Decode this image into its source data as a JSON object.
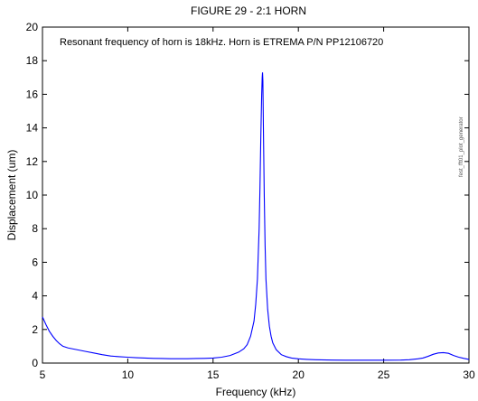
{
  "chart_data": {
    "type": "line",
    "title": "FIGURE 29 - 2:1 HORN",
    "xlabel": "Frequency (kHz)",
    "ylabel": "Displacement (um)",
    "xlim": [
      5,
      30
    ],
    "ylim": [
      0,
      20
    ],
    "xticks": [
      5,
      10,
      15,
      20,
      25,
      30
    ],
    "yticks": [
      0,
      2,
      4,
      6,
      8,
      10,
      12,
      14,
      16,
      18,
      20
    ],
    "grid": false,
    "legend": "none",
    "annotation": "Resonant frequency of horn is 18kHz.  Horn is ETREMA P/N PP12106720",
    "side_note": "fest_fft01_plot_generator",
    "line_color": "#0000ff",
    "series": [
      {
        "x": [
          5.0,
          5.2,
          5.4,
          5.6,
          5.8,
          6.0,
          6.2,
          6.5,
          7.0,
          7.5,
          8.0,
          8.5,
          9.0,
          9.5,
          10.0,
          10.5,
          11.0,
          11.5,
          12.0,
          12.5,
          13.0,
          13.5,
          14.0,
          14.5,
          15.0,
          15.5,
          16.0,
          16.5,
          16.8,
          17.0,
          17.2,
          17.4,
          17.5,
          17.6,
          17.7,
          17.75,
          17.8,
          17.85,
          17.88,
          17.9,
          17.92,
          17.95,
          18.0,
          18.05,
          18.1,
          18.2,
          18.3,
          18.4,
          18.5,
          18.7,
          19.0,
          19.3,
          19.6,
          20.0,
          20.5,
          21.0,
          22.0,
          23.0,
          24.0,
          25.0,
          26.0,
          26.5,
          27.0,
          27.3,
          27.6,
          27.9,
          28.2,
          28.5,
          28.8,
          29.1,
          29.4,
          29.7,
          30.0
        ],
        "y": [
          2.75,
          2.3,
          1.9,
          1.6,
          1.35,
          1.15,
          1.0,
          0.9,
          0.8,
          0.7,
          0.6,
          0.5,
          0.42,
          0.38,
          0.35,
          0.32,
          0.3,
          0.28,
          0.27,
          0.26,
          0.26,
          0.26,
          0.27,
          0.28,
          0.3,
          0.35,
          0.45,
          0.65,
          0.85,
          1.1,
          1.6,
          2.5,
          3.5,
          5.0,
          8.0,
          10.5,
          13.5,
          16.0,
          17.0,
          17.3,
          16.8,
          14.0,
          10.0,
          7.0,
          5.0,
          3.2,
          2.2,
          1.6,
          1.2,
          0.8,
          0.5,
          0.38,
          0.3,
          0.25,
          0.22,
          0.2,
          0.18,
          0.17,
          0.17,
          0.17,
          0.18,
          0.2,
          0.25,
          0.3,
          0.4,
          0.52,
          0.6,
          0.62,
          0.58,
          0.45,
          0.35,
          0.28,
          0.22
        ]
      }
    ]
  }
}
